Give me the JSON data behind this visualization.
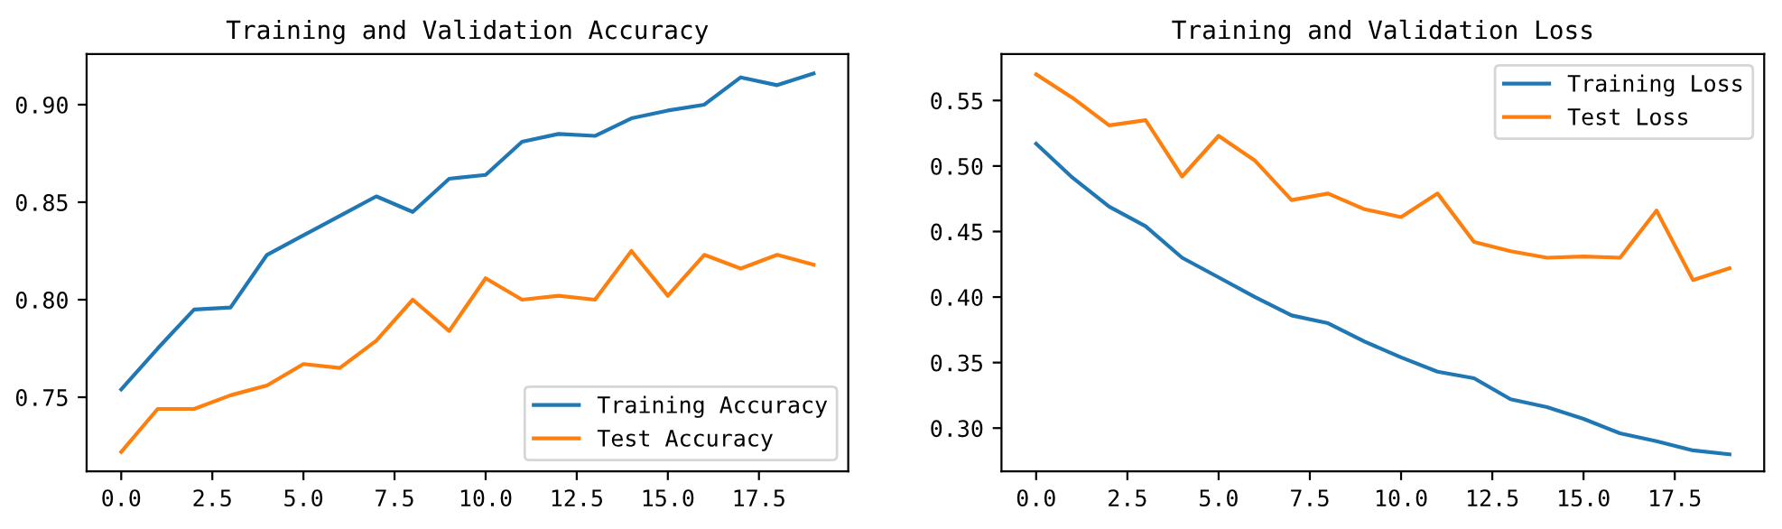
{
  "chart_data": [
    {
      "type": "line",
      "title": "Training and Validation Accuracy",
      "x": [
        0,
        1,
        2,
        3,
        4,
        5,
        6,
        7,
        8,
        9,
        10,
        11,
        12,
        13,
        14,
        15,
        16,
        17,
        18,
        19
      ],
      "series": [
        {
          "name": "Training Accuracy",
          "color": "#1f77b4",
          "values": [
            0.754,
            0.775,
            0.795,
            0.796,
            0.823,
            0.833,
            0.843,
            0.853,
            0.845,
            0.862,
            0.864,
            0.881,
            0.885,
            0.884,
            0.893,
            0.897,
            0.9,
            0.914,
            0.91,
            0.916
          ]
        },
        {
          "name": "Test Accuracy",
          "color": "#ff7f0e",
          "values": [
            0.722,
            0.744,
            0.744,
            0.751,
            0.756,
            0.767,
            0.765,
            0.779,
            0.8,
            0.784,
            0.811,
            0.8,
            0.802,
            0.8,
            0.825,
            0.802,
            0.823,
            0.816,
            0.823,
            0.818
          ]
        }
      ],
      "xlim": [
        -0.95,
        19.95
      ],
      "xticks": [
        {
          "value": 0,
          "label": "0.0"
        },
        2.5,
        {
          "value": 5,
          "label": "5.0"
        },
        7.5,
        {
          "value": 10,
          "label": "10.0"
        },
        12.5,
        {
          "value": 15,
          "label": "15.0"
        },
        17.5
      ],
      "ylim": [
        0.712,
        0.926
      ],
      "yticks": [
        {
          "value": 0.75,
          "label": "0.75"
        },
        {
          "value": 0.8,
          "label": "0.80"
        },
        {
          "value": 0.85,
          "label": "0.85"
        },
        {
          "value": 0.9,
          "label": "0.90"
        }
      ],
      "legend": "bottom right",
      "grid": false
    },
    {
      "type": "line",
      "title": "Training and Validation Loss",
      "x": [
        0,
        1,
        2,
        3,
        4,
        5,
        6,
        7,
        8,
        9,
        10,
        11,
        12,
        13,
        14,
        15,
        16,
        17,
        18,
        19
      ],
      "series": [
        {
          "name": "Training Loss",
          "color": "#1f77b4",
          "values": [
            0.517,
            0.491,
            0.469,
            0.454,
            0.43,
            0.415,
            0.4,
            0.386,
            0.38,
            0.366,
            0.354,
            0.343,
            0.338,
            0.322,
            0.316,
            0.307,
            0.296,
            0.29,
            0.283,
            0.28
          ]
        },
        {
          "name": "Test Loss",
          "color": "#ff7f0e",
          "values": [
            0.57,
            0.552,
            0.531,
            0.535,
            0.492,
            0.523,
            0.504,
            0.474,
            0.479,
            0.467,
            0.461,
            0.479,
            0.442,
            0.435,
            0.43,
            0.431,
            0.43,
            0.466,
            0.413,
            0.422
          ]
        }
      ],
      "xlim": [
        -0.95,
        19.95
      ],
      "xticks": [
        {
          "value": 0,
          "label": "0.0"
        },
        2.5,
        {
          "value": 5,
          "label": "5.0"
        },
        7.5,
        {
          "value": 10,
          "label": "10.0"
        },
        12.5,
        {
          "value": 15,
          "label": "15.0"
        },
        17.5
      ],
      "ylim": [
        0.267,
        0.5855
      ],
      "yticks": [
        {
          "value": 0.3,
          "label": "0.30"
        },
        0.35,
        {
          "value": 0.4,
          "label": "0.40"
        },
        0.45,
        {
          "value": 0.5,
          "label": "0.50"
        },
        0.55
      ],
      "legend": "top right",
      "grid": false
    }
  ]
}
